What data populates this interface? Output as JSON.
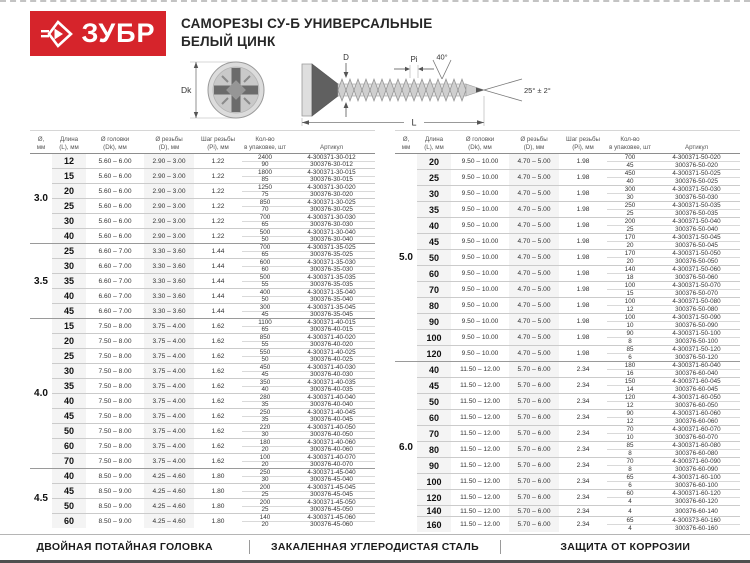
{
  "colors": {
    "brand_red": "#d6242b"
  },
  "header": {
    "brand": "ЗУБР",
    "title_line1": "САМОРЕЗЫ СУ-Б УНИВЕРСАЛЬНЫЕ",
    "title_line2": "БЕЛЫЙ ЦИНК"
  },
  "diagram": {
    "dk": "Dk",
    "d": "D",
    "pi": "Pi",
    "l": "L",
    "angle_top": "40°",
    "angle_tip": "25° ± 2°"
  },
  "columns": [
    "Ø,\nмм",
    "Длина\n(L), мм",
    "Ø головки\n(Dk), мм",
    "Ø резьбы\n(D), мм",
    "Шаг резьбы\n(Pi), мм",
    "Кол-во\nв упаковке, шт",
    "Артикул"
  ],
  "tables": [
    {
      "groups": [
        {
          "diameter": "3.0",
          "head": "5.60 – 6.00",
          "thread": "2.90 – 3.00",
          "pitch": "1.22",
          "rows": [
            {
              "len": "12",
              "packs": [
                [
                  "2400",
                  "4-300371-30-012"
                ],
                [
                  "90",
                  "300376-30-012"
                ]
              ]
            },
            {
              "len": "15",
              "packs": [
                [
                  "1800",
                  "4-300371-30-015"
                ],
                [
                  "85",
                  "300376-30-015"
                ]
              ]
            },
            {
              "len": "20",
              "packs": [
                [
                  "1250",
                  "4-300371-30-020"
                ],
                [
                  "75",
                  "300376-30-020"
                ]
              ]
            },
            {
              "len": "25",
              "packs": [
                [
                  "850",
                  "4-300371-30-025"
                ],
                [
                  "70",
                  "300376-30-025"
                ]
              ]
            },
            {
              "len": "30",
              "packs": [
                [
                  "700",
                  "4-300371-30-030"
                ],
                [
                  "65",
                  "300376-30-030"
                ]
              ]
            },
            {
              "len": "40",
              "packs": [
                [
                  "500",
                  "4-300371-30-040"
                ],
                [
                  "50",
                  "300376-30-040"
                ]
              ]
            }
          ]
        },
        {
          "diameter": "3.5",
          "head": "6.60 – 7.00",
          "thread": "3.30 – 3.60",
          "pitch": "1.44",
          "rows": [
            {
              "len": "25",
              "packs": [
                [
                  "700",
                  "4-300371-35-025"
                ],
                [
                  "65",
                  "300376-35-025"
                ]
              ]
            },
            {
              "len": "30",
              "packs": [
                [
                  "600",
                  "4-300371-35-030"
                ],
                [
                  "60",
                  "300376-35-030"
                ]
              ]
            },
            {
              "len": "35",
              "packs": [
                [
                  "500",
                  "4-300371-35-035"
                ],
                [
                  "55",
                  "300376-35-035"
                ]
              ]
            },
            {
              "len": "40",
              "packs": [
                [
                  "400",
                  "4-300371-35-040"
                ],
                [
                  "50",
                  "300376-35-040"
                ]
              ]
            },
            {
              "len": "45",
              "packs": [
                [
                  "300",
                  "4-300371-35-045"
                ],
                [
                  "45",
                  "300376-35-045"
                ]
              ]
            }
          ]
        },
        {
          "diameter": "4.0",
          "head": "7.50 – 8.00",
          "thread": "3.75 – 4.00",
          "pitch": "1.62",
          "rows": [
            {
              "len": "15",
              "packs": [
                [
                  "1100",
                  "4-300371-40-015"
                ],
                [
                  "65",
                  "300376-40-015"
                ]
              ]
            },
            {
              "len": "20",
              "packs": [
                [
                  "850",
                  "4-300371-40-020"
                ],
                [
                  "55",
                  "300376-40-020"
                ]
              ]
            },
            {
              "len": "25",
              "packs": [
                [
                  "550",
                  "4-300371-40-025"
                ],
                [
                  "50",
                  "300376-40-025"
                ]
              ]
            },
            {
              "len": "30",
              "packs": [
                [
                  "450",
                  "4-300371-40-030"
                ],
                [
                  "45",
                  "300376-40-030"
                ]
              ]
            },
            {
              "len": "35",
              "packs": [
                [
                  "350",
                  "4-300371-40-035"
                ],
                [
                  "40",
                  "300376-40-035"
                ]
              ]
            },
            {
              "len": "40",
              "packs": [
                [
                  "280",
                  "4-300371-40-040"
                ],
                [
                  "35",
                  "300376-40-040"
                ]
              ]
            },
            {
              "len": "45",
              "packs": [
                [
                  "250",
                  "4-300371-40-045"
                ],
                [
                  "35",
                  "300376-40-045"
                ]
              ]
            },
            {
              "len": "50",
              "packs": [
                [
                  "220",
                  "4-300371-40-050"
                ],
                [
                  "30",
                  "300376-40-050"
                ]
              ]
            },
            {
              "len": "60",
              "packs": [
                [
                  "180",
                  "4-300371-40-060"
                ],
                [
                  "20",
                  "300376-40-060"
                ]
              ]
            },
            {
              "len": "70",
              "packs": [
                [
                  "100",
                  "4-300371-40-070"
                ],
                [
                  "20",
                  "300376-40-070"
                ]
              ]
            }
          ]
        },
        {
          "diameter": "4.5",
          "head": "8.50 – 9.00",
          "thread": "4.25 – 4.60",
          "pitch": "1.80",
          "rows": [
            {
              "len": "40",
              "packs": [
                [
                  "250",
                  "4-300371-45-040"
                ],
                [
                  "30",
                  "300376-45-040"
                ]
              ]
            },
            {
              "len": "45",
              "packs": [
                [
                  "200",
                  "4-300371-45-045"
                ],
                [
                  "25",
                  "300376-45-045"
                ]
              ]
            },
            {
              "len": "50",
              "packs": [
                [
                  "200",
                  "4-300371-45-050"
                ],
                [
                  "25",
                  "300376-45-050"
                ]
              ]
            },
            {
              "len": "60",
              "packs": [
                [
                  "140",
                  "4-300371-45-060"
                ],
                [
                  "20",
                  "300376-45-060"
                ]
              ]
            }
          ]
        }
      ]
    },
    {
      "groups": [
        {
          "diameter": "5.0",
          "head": "9.50 – 10.00",
          "thread": "4.70 – 5.00",
          "pitch": "1.98",
          "rows": [
            {
              "len": "20",
              "packs": [
                [
                  "700",
                  "4-300371-50-020"
                ],
                [
                  "45",
                  "300376-50-020"
                ]
              ]
            },
            {
              "len": "25",
              "packs": [
                [
                  "450",
                  "4-300371-50-025"
                ],
                [
                  "40",
                  "300376-50-025"
                ]
              ]
            },
            {
              "len": "30",
              "packs": [
                [
                  "300",
                  "4-300371-50-030"
                ],
                [
                  "30",
                  "300376-50-030"
                ]
              ]
            },
            {
              "len": "35",
              "packs": [
                [
                  "250",
                  "4-300371-50-035"
                ],
                [
                  "25",
                  "300376-50-035"
                ]
              ]
            },
            {
              "len": "40",
              "packs": [
                [
                  "200",
                  "4-300371-50-040"
                ],
                [
                  "25",
                  "300376-50-040"
                ]
              ]
            },
            {
              "len": "45",
              "packs": [
                [
                  "170",
                  "4-300371-50-045"
                ],
                [
                  "20",
                  "300376-50-045"
                ]
              ]
            },
            {
              "len": "50",
              "packs": [
                [
                  "170",
                  "4-300371-50-050"
                ],
                [
                  "20",
                  "300376-50-050"
                ]
              ]
            },
            {
              "len": "60",
              "packs": [
                [
                  "140",
                  "4-300371-50-060"
                ],
                [
                  "18",
                  "300376-50-060"
                ]
              ]
            },
            {
              "len": "70",
              "packs": [
                [
                  "100",
                  "4-300371-50-070"
                ],
                [
                  "15",
                  "300376-50-070"
                ]
              ]
            },
            {
              "len": "80",
              "packs": [
                [
                  "100",
                  "4-300371-50-080"
                ],
                [
                  "12",
                  "300376-50-080"
                ]
              ]
            },
            {
              "len": "90",
              "packs": [
                [
                  "100",
                  "4-300371-50-090"
                ],
                [
                  "10",
                  "300376-50-090"
                ]
              ]
            },
            {
              "len": "100",
              "packs": [
                [
                  "90",
                  "4-300371-50-100"
                ],
                [
                  "8",
                  "300376-50-100"
                ]
              ]
            },
            {
              "len": "120",
              "packs": [
                [
                  "85",
                  "4-300371-50-120"
                ],
                [
                  "6",
                  "300376-50-120"
                ]
              ]
            }
          ]
        },
        {
          "diameter": "6.0",
          "head": "11.50 – 12.00",
          "thread": "5.70 – 6.00",
          "pitch": "2.34",
          "rows": [
            {
              "len": "40",
              "packs": [
                [
                  "180",
                  "4-300371-60-040"
                ],
                [
                  "16",
                  "300376-60-040"
                ]
              ]
            },
            {
              "len": "45",
              "packs": [
                [
                  "150",
                  "4-300371-60-045"
                ],
                [
                  "14",
                  "300376-60-045"
                ]
              ]
            },
            {
              "len": "50",
              "packs": [
                [
                  "120",
                  "4-300371-60-050"
                ],
                [
                  "12",
                  "300376-60-050"
                ]
              ]
            },
            {
              "len": "60",
              "packs": [
                [
                  "90",
                  "4-300371-60-060"
                ],
                [
                  "12",
                  "300376-60-060"
                ]
              ]
            },
            {
              "len": "70",
              "packs": [
                [
                  "70",
                  "4-300371-60-070"
                ],
                [
                  "10",
                  "300376-60-070"
                ]
              ]
            },
            {
              "len": "80",
              "packs": [
                [
                  "85",
                  "4-300371-60-080"
                ],
                [
                  "8",
                  "300376-60-080"
                ]
              ]
            },
            {
              "len": "90",
              "packs": [
                [
                  "70",
                  "4-300371-60-090"
                ],
                [
                  "8",
                  "300376-60-090"
                ]
              ]
            },
            {
              "len": "100",
              "packs": [
                [
                  "65",
                  "4-300371-60-100"
                ],
                [
                  "6",
                  "300376-60-100"
                ]
              ]
            },
            {
              "len": "120",
              "packs": [
                [
                  "60",
                  "4-300371-60-120"
                ],
                [
                  "4",
                  "300376-60-120"
                ]
              ]
            },
            {
              "len": "140",
              "packs": [
                [
                  "4",
                  "300376-60-140"
                ]
              ]
            },
            {
              "len": "160",
              "packs": [
                [
                  "65",
                  "4-300373-60-160"
                ],
                [
                  "4",
                  "300376-60-160"
                ]
              ]
            }
          ]
        }
      ]
    }
  ],
  "footer": {
    "features": [
      "ДВОЙНАЯ ПОТАЙНАЯ ГОЛОВКА",
      "ЗАКАЛЕННАЯ УГЛЕРОДИСТАЯ СТАЛЬ",
      "ЗАЩИТА ОТ КОРРОЗИИ"
    ]
  }
}
